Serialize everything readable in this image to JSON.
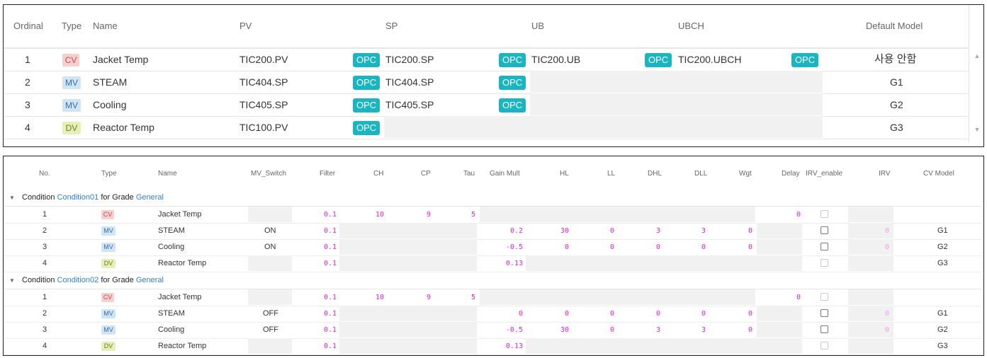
{
  "top_table": {
    "columns": [
      "Ordinal",
      "Type",
      "Name",
      "PV",
      "SP",
      "UB",
      "UBCH",
      "Default Model"
    ],
    "opc_label": "OPC",
    "rows": [
      {
        "ordinal": "1",
        "type": "CV",
        "name": "Jacket Temp",
        "pv": "TIC200.PV",
        "sp": "TIC200.SP",
        "ub": "TIC200.UB",
        "ubch": "TIC200.UBCH",
        "model": "사용 안함"
      },
      {
        "ordinal": "2",
        "type": "MV",
        "name": "STEAM",
        "pv": "TIC404.SP",
        "sp": "TIC404.SP",
        "ub": "",
        "ubch": "",
        "model": "G1"
      },
      {
        "ordinal": "3",
        "type": "MV",
        "name": "Cooling",
        "pv": "TIC405.SP",
        "sp": "TIC405.SP",
        "ub": "",
        "ubch": "",
        "model": "G2"
      },
      {
        "ordinal": "4",
        "type": "DV",
        "name": "Reactor Temp",
        "pv": "TIC100.PV",
        "sp": "",
        "ub": "",
        "ubch": "",
        "model": "G3"
      }
    ]
  },
  "bottom_table": {
    "columns": [
      "No.",
      "Type",
      "Name",
      "MV_Switch",
      "Filter",
      "CH",
      "CP",
      "Tau",
      "Gain Mult",
      "HL",
      "LL",
      "DHL",
      "DLL",
      "Wgt",
      "Delay",
      "IRV_enable",
      "IRV",
      "CV Model"
    ],
    "groups": [
      {
        "prefix": "Condition",
        "condition": "Condition01",
        "middle": "for Grade",
        "grade": "General",
        "rows": [
          {
            "no": "1",
            "type": "CV",
            "name": "Jacket Temp",
            "mv_switch": "",
            "filter": "0.1",
            "ch": "10",
            "cp": "9",
            "tau": "5",
            "gain": "",
            "hl": "",
            "ll": "",
            "dhl": "",
            "dll": "",
            "wgt": "",
            "delay": "0",
            "irv": "",
            "model": ""
          },
          {
            "no": "2",
            "type": "MV",
            "name": "STEAM",
            "mv_switch": "ON",
            "filter": "0.1",
            "ch": "",
            "cp": "",
            "tau": "",
            "gain": "0.2",
            "hl": "30",
            "ll": "0",
            "dhl": "3",
            "dll": "3",
            "wgt": "0",
            "delay": "",
            "irv": "0",
            "model": "G1"
          },
          {
            "no": "3",
            "type": "MV",
            "name": "Cooling",
            "mv_switch": "ON",
            "filter": "0.1",
            "ch": "",
            "cp": "",
            "tau": "",
            "gain": "-0.5",
            "hl": "0",
            "ll": "0",
            "dhl": "0",
            "dll": "0",
            "wgt": "0",
            "delay": "",
            "irv": "0",
            "model": "G2"
          },
          {
            "no": "4",
            "type": "DV",
            "name": "Reactor Temp",
            "mv_switch": "",
            "filter": "0.1",
            "ch": "",
            "cp": "",
            "tau": "",
            "gain": "0.13",
            "hl": "",
            "ll": "",
            "dhl": "",
            "dll": "",
            "wgt": "",
            "delay": "",
            "irv": "",
            "model": "G3"
          }
        ]
      },
      {
        "prefix": "Condition",
        "condition": "Condition02",
        "middle": "for Grade",
        "grade": "General",
        "rows": [
          {
            "no": "1",
            "type": "CV",
            "name": "Jacket Temp",
            "mv_switch": "",
            "filter": "0.1",
            "ch": "10",
            "cp": "9",
            "tau": "5",
            "gain": "",
            "hl": "",
            "ll": "",
            "dhl": "",
            "dll": "",
            "wgt": "",
            "delay": "0",
            "irv": "",
            "model": ""
          },
          {
            "no": "2",
            "type": "MV",
            "name": "STEAM",
            "mv_switch": "OFF",
            "filter": "0.1",
            "ch": "",
            "cp": "",
            "tau": "",
            "gain": "0",
            "hl": "0",
            "ll": "0",
            "dhl": "0",
            "dll": "0",
            "wgt": "0",
            "delay": "",
            "irv": "0",
            "model": "G1"
          },
          {
            "no": "3",
            "type": "MV",
            "name": "Cooling",
            "mv_switch": "OFF",
            "filter": "0.1",
            "ch": "",
            "cp": "",
            "tau": "",
            "gain": "-0.5",
            "hl": "30",
            "ll": "0",
            "dhl": "3",
            "dll": "3",
            "wgt": "0",
            "delay": "",
            "irv": "0",
            "model": "G2"
          },
          {
            "no": "4",
            "type": "DV",
            "name": "Reactor Temp",
            "mv_switch": "",
            "filter": "0.1",
            "ch": "",
            "cp": "",
            "tau": "",
            "gain": "0.13",
            "hl": "",
            "ll": "",
            "dhl": "",
            "dll": "",
            "wgt": "",
            "delay": "",
            "irv": "",
            "model": "G3"
          }
        ]
      }
    ]
  },
  "icons": {
    "collapse": "triangle-down-icon",
    "scroll_up": "arrow-up-icon",
    "scroll_down": "arrow-down-icon"
  }
}
